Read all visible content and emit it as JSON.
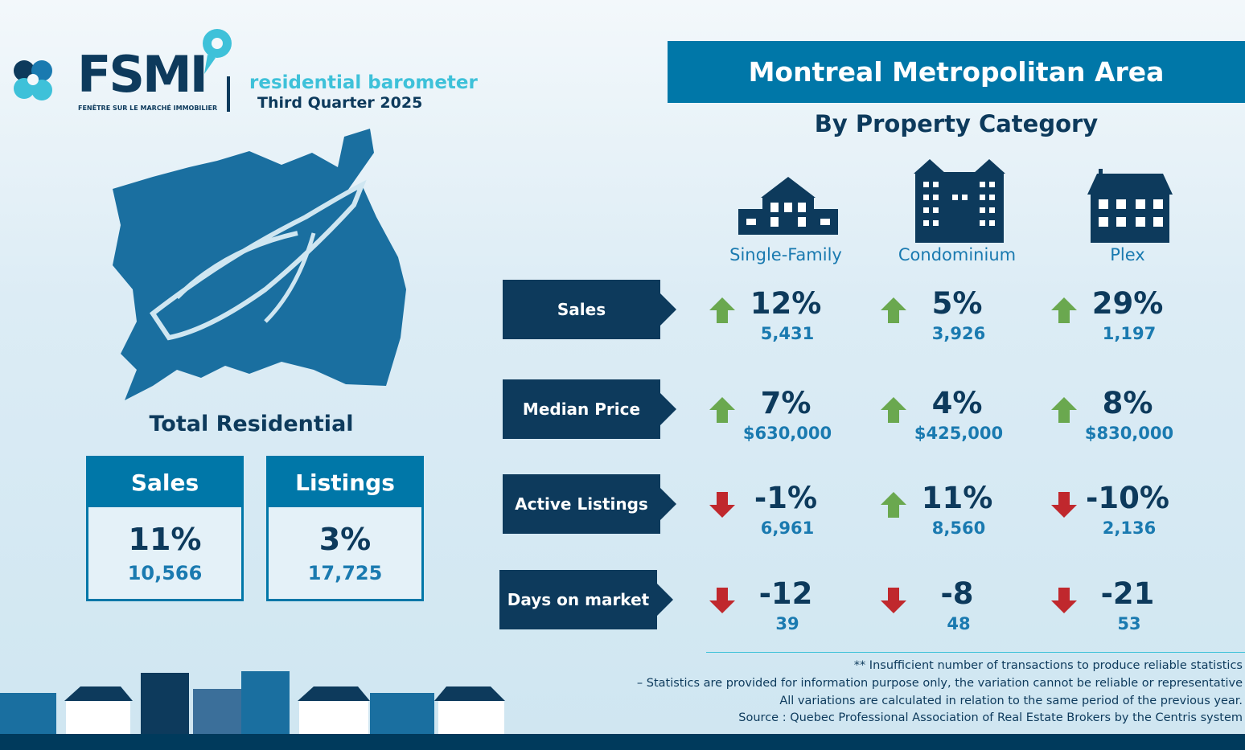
{
  "header": {
    "logo_text": "FSMI",
    "logo_subtitle": "FENÊTRE SUR LE MARCHÉ IMMOBILIER",
    "product": "residential barometer",
    "period": "Third Quarter 2025"
  },
  "title": "Montreal Metropolitan Area",
  "subtitle": "By Property Category",
  "categories": [
    "Single-Family",
    "Condominium",
    "Plex"
  ],
  "rows": [
    {
      "label": "Sales",
      "cells": [
        {
          "pct": "12%",
          "value": "5,431",
          "dir": "up"
        },
        {
          "pct": "5%",
          "value": "3,926",
          "dir": "up"
        },
        {
          "pct": "29%",
          "value": "1,197",
          "dir": "up"
        }
      ]
    },
    {
      "label": "Median Price",
      "cells": [
        {
          "pct": "7%",
          "value": "$630,000",
          "dir": "up"
        },
        {
          "pct": "4%",
          "value": "$425,000",
          "dir": "up"
        },
        {
          "pct": "8%",
          "value": "$830,000",
          "dir": "up"
        }
      ]
    },
    {
      "label": "Active Listings",
      "cells": [
        {
          "pct": "-1%",
          "value": "6,961",
          "dir": "down"
        },
        {
          "pct": "11%",
          "value": "8,560",
          "dir": "up"
        },
        {
          "pct": "-10%",
          "value": "2,136",
          "dir": "down"
        }
      ]
    },
    {
      "label": "Days on market",
      "cells": [
        {
          "pct": "-12",
          "value": "39",
          "dir": "down"
        },
        {
          "pct": "-8",
          "value": "48",
          "dir": "down"
        },
        {
          "pct": "-21",
          "value": "53",
          "dir": "down"
        }
      ]
    }
  ],
  "total": {
    "title": "Total Residential",
    "sales": {
      "label": "Sales",
      "pct": "11%",
      "value": "10,566"
    },
    "listings": {
      "label": "Listings",
      "pct": "3%",
      "value": "17,725"
    }
  },
  "notes": [
    "** Insufficient number of transactions to produce reliable statistics",
    "– Statistics are provided for information purpose only, the variation cannot be reliable or representative",
    "All variations are calculated in relation to the same period of the previous year.",
    "Source : Quebec Professional Association of Real Estate Brokers by the Centris system"
  ],
  "colors": {
    "navy": "#0d3a5c",
    "blue": "#0077a8",
    "cyan": "#3ec1d9",
    "up": "#6aa84f",
    "down": "#c0282d"
  }
}
